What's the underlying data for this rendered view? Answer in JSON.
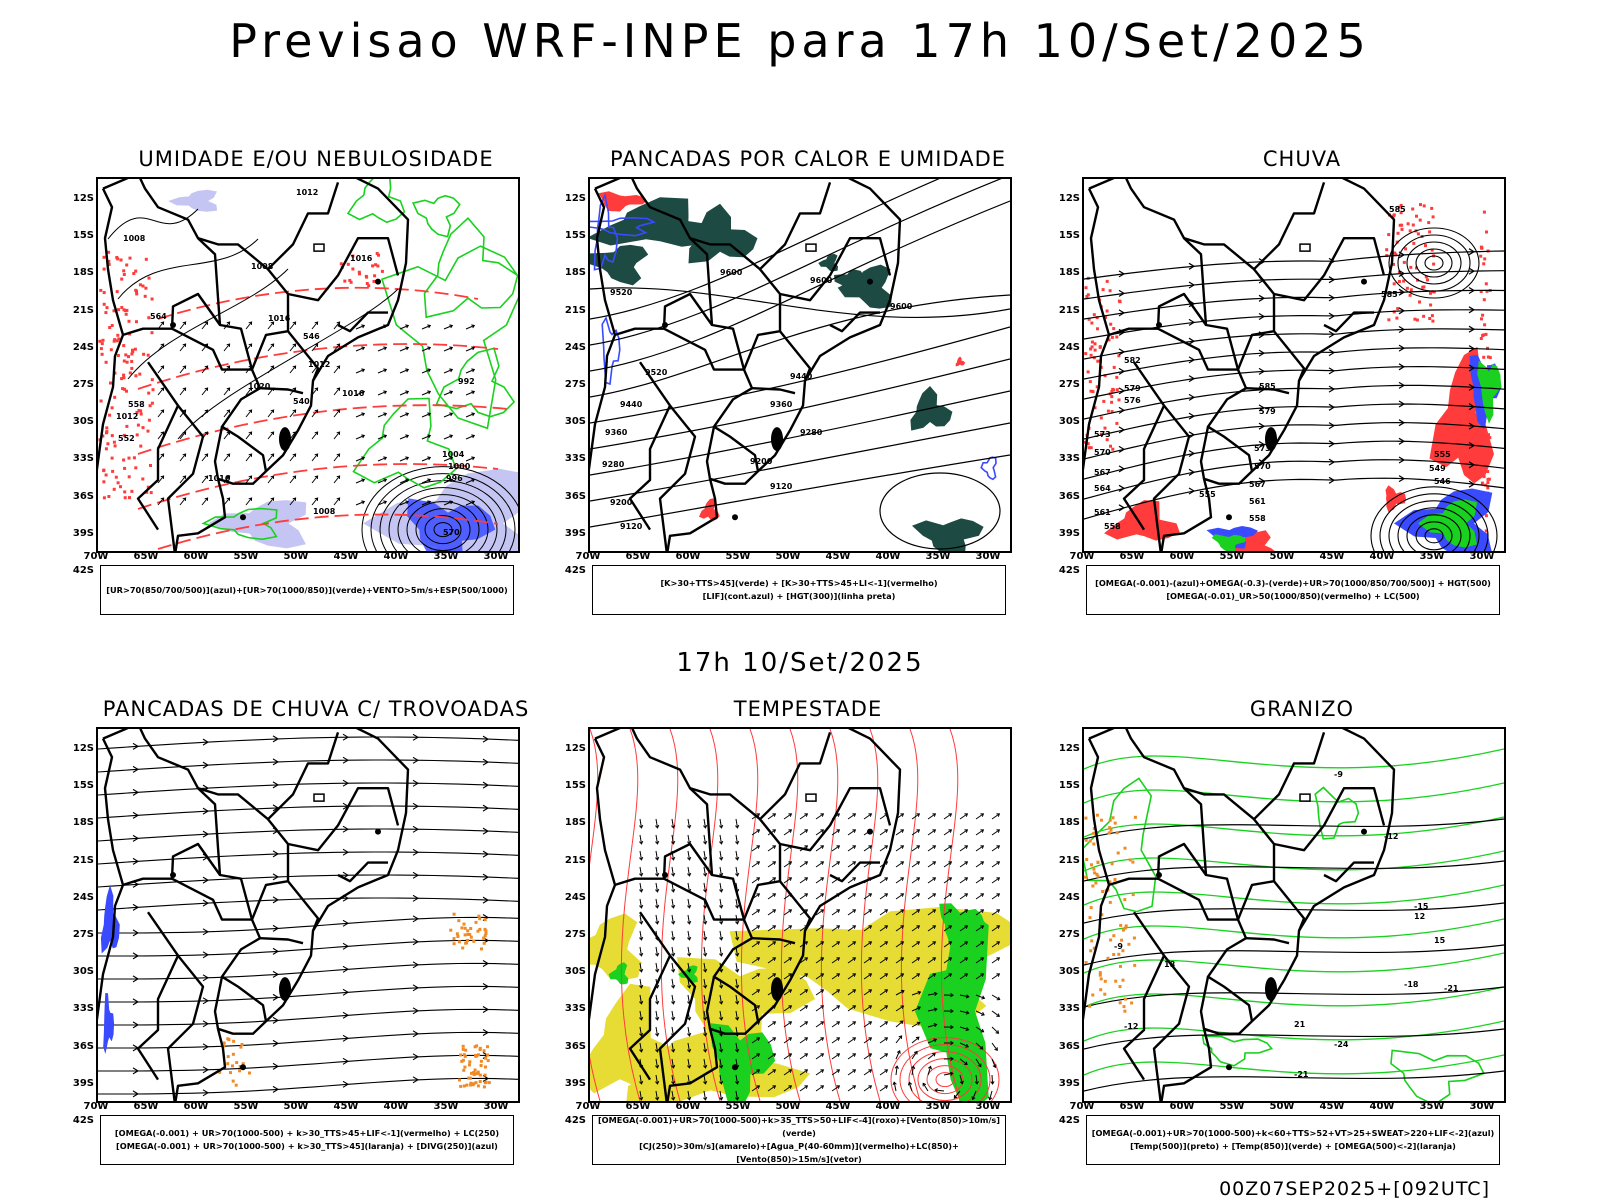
{
  "main_title": "Previsao WRF-INPE  para 17h 10/Set/2025",
  "mid_title": "17h 10/Set/2025",
  "footer": "00Z07SEP2025+[092UTC]",
  "lat_labels": [
    "12S",
    "15S",
    "18S",
    "21S",
    "24S",
    "27S",
    "30S",
    "33S",
    "36S",
    "39S",
    "42S"
  ],
  "lon_labels": [
    "70W",
    "65W",
    "60W",
    "55W",
    "50W",
    "45W",
    "40W",
    "35W",
    "30W"
  ],
  "colors": {
    "blue": "#3a4bff",
    "green": "#19d11e",
    "red": "#ff3b3b",
    "orange": "#f08a24",
    "yellow": "#e6dc33",
    "darkteal": "#1e4a44",
    "lightblue": "#b6b6f0"
  },
  "panels": [
    {
      "title": "UMIDADE E/OU NEBULOSIDADE",
      "legend": [
        "[UR>70(850/700/500)](azul)+[UR>70(1000/850)](verde)+VENTO>5m/s+ESP(500/1000)"
      ]
    },
    {
      "title": "PANCADAS POR CALOR E UMIDADE",
      "legend": [
        "[K>30+TTS>45](verde) + [K>30+TTS>45+LI<-1](vermelho)",
        "[LIF](cont.azul) + [HGT(300)](linha preta)"
      ]
    },
    {
      "title": "CHUVA",
      "legend": [
        "[OMEGA(-0.001)-(azul)+OMEGA(-0.3)-(verde)+UR>70(1000/850/700/500)] + HGT(500)",
        "[OMEGA(-0.01)_UR>50(1000/850)(vermelho) + LC(500)"
      ]
    },
    {
      "title": "PANCADAS DE CHUVA C/ TROVOADAS",
      "legend": [
        "[OMEGA(-0.001) + UR>70(1000-500) + k>30_TTS>45+LIF<-1](vermelho) + LC(250)",
        "[OMEGA(-0.001) + UR>70(1000-500) + k>30_TTS>45](laranja) + [DIVG(250)](azul)"
      ]
    },
    {
      "title": "TEMPESTADE",
      "legend": [
        "[OMEGA(-0.001)+UR>70(1000-500)+k>35_TTS>50+LIF<-4](roxo)+[Vento(850)>10m/s](verde)",
        "[CJ(250)>30m/s](amarelo)+[Agua_P(40-60mm)](vermelho)+LC(850)+[Vento(850)>15m/s](vetor)"
      ]
    },
    {
      "title": "GRANIZO",
      "legend": [
        "[OMEGA(-0.001)+UR>70(1000-500)+k<60+TTS>52+VT>25+SWEAT>220+LIF<-2](azul)",
        "[Temp(500)](preto) + [Temp(850)](verde) + [OMEGA(500)<-2](laranja)"
      ]
    }
  ],
  "contour_labels": {
    "p0": [
      "1008",
      "1008",
      "1012",
      "1016",
      "1016",
      "1012",
      "1020",
      "1016",
      "1012",
      "1016",
      "1008",
      "992",
      "1004",
      "1000",
      "996",
      "570",
      "564",
      "558",
      "552",
      "546",
      "540"
    ],
    "p1": [
      "9600",
      "9520",
      "9600",
      "9600",
      "9520",
      "9440",
      "9440",
      "9360",
      "9360",
      "9280",
      "9280",
      "9200",
      "9200",
      "9120",
      "9120"
    ],
    "p2": [
      "585",
      "585",
      "582",
      "579",
      "576",
      "573",
      "570",
      "567",
      "564",
      "561",
      "558",
      "555",
      "585",
      "579",
      "573",
      "570",
      "567",
      "561",
      "558",
      "555",
      "549",
      "546"
    ],
    "p5": [
      "-9",
      "-12",
      "-15",
      "-18",
      "-21",
      "-21",
      "-24",
      "-12",
      "-9",
      "12",
      "15",
      "18",
      "21"
    ]
  }
}
